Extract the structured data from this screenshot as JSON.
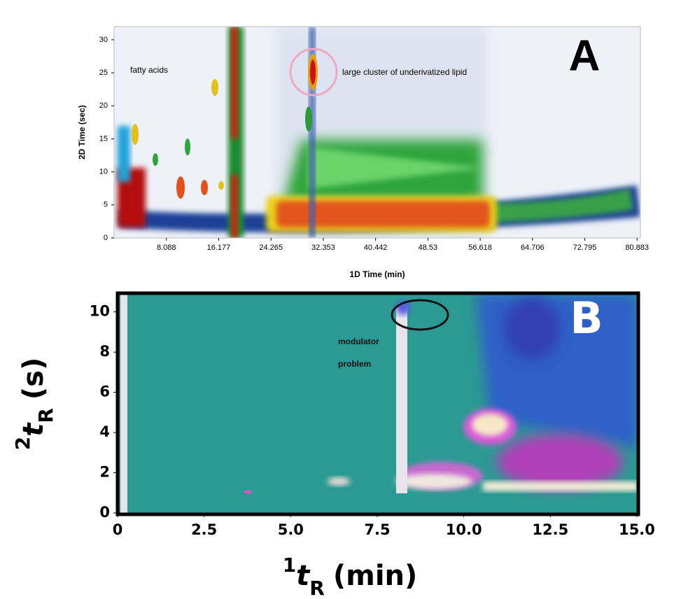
{
  "chart_data": [
    {
      "type": "heatmap",
      "panel": "A",
      "xlabel": "1D Time (min)",
      "ylabel": "2D Time (sec)",
      "xlim": [
        0,
        81.4
      ],
      "ylim": [
        0,
        32
      ],
      "xticks": [
        8.088,
        16.177,
        24.265,
        32.353,
        40.442,
        48.53,
        56.618,
        64.706,
        72.795,
        80.883
      ],
      "yticks": [
        0,
        5,
        10,
        15,
        20,
        25,
        30
      ],
      "annotations": [
        "fatty acids",
        "large cluster of underivatized lipid"
      ]
    },
    {
      "type": "heatmap",
      "panel": "B",
      "xlabel": {
        "sup": "1",
        "var": "t",
        "sub": "R",
        "unit": "(min)"
      },
      "ylabel": {
        "sup": "2",
        "var": "t",
        "sub": "R",
        "unit": "(s)"
      },
      "xlim": [
        0,
        15
      ],
      "ylim": [
        0,
        11
      ],
      "xticks": [
        0,
        2.5,
        {
          "value": 5,
          "label": "5.0"
        },
        7.5,
        {
          "value": 10,
          "label": "10.0"
        },
        12.5,
        {
          "value": 15,
          "label": "15.0"
        }
      ],
      "yticks": [
        0,
        2,
        4,
        6,
        8,
        10
      ],
      "annotations": [
        "modulator",
        "problem"
      ]
    }
  ]
}
